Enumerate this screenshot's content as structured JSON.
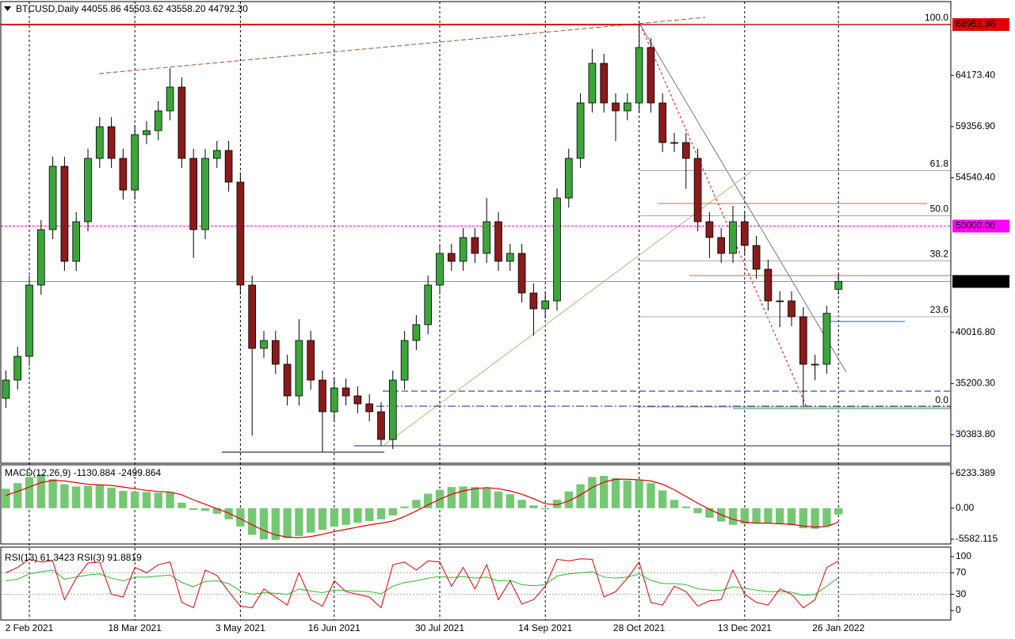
{
  "chart_data": [
    {
      "type": "candlestick",
      "title": "BTCUSD,Daily  44055.86 45503.62 43558.20 44792.30",
      "categories": [
        null,
        null,
        "2 Feb 2021",
        null,
        null,
        null,
        null,
        null,
        null,
        null,
        null,
        "18 Mar 2021",
        null,
        null,
        null,
        null,
        null,
        null,
        null,
        null,
        "3 May 2021",
        null,
        null,
        null,
        null,
        null,
        null,
        null,
        "16 Jun 2021",
        null,
        null,
        null,
        null,
        null,
        null,
        null,
        null,
        "30 Jul 2021",
        null,
        null,
        null,
        null,
        null,
        null,
        null,
        null,
        "14 Sep 2021",
        null,
        null,
        null,
        null,
        null,
        null,
        null,
        "28 Oct 2021",
        null,
        null,
        null,
        null,
        null,
        null,
        null,
        null,
        "13 Dec 2021",
        null,
        null,
        null,
        null,
        null,
        null,
        null,
        "26 Jan 2022"
      ],
      "open": [
        33800,
        35520,
        37753,
        44454,
        49667,
        55623,
        46688,
        50411,
        56368,
        59346,
        56368,
        53390,
        58602,
        58974,
        60836,
        63069,
        56368,
        49667,
        56368,
        57113,
        54134,
        44454,
        38498,
        39242,
        37008,
        34030,
        39242,
        35519,
        32541,
        34775,
        34030,
        33285,
        32541,
        29935,
        35519,
        39242,
        40731,
        44454,
        47433,
        46688,
        48922,
        47433,
        50411,
        46688,
        47433,
        43710,
        42221,
        42965,
        52645,
        56368,
        61580,
        65303,
        61580,
        60836,
        61580,
        66792,
        61580,
        57857,
        57857,
        56368,
        50411,
        48922,
        47433,
        50411,
        48177,
        45944,
        42965,
        42965,
        41476,
        37008,
        37008,
        44055.86
      ],
      "high": [
        36420,
        38650,
        45350,
        50570,
        56520,
        56520,
        51310,
        57270,
        60250,
        60250,
        57270,
        59500,
        59870,
        61740,
        64850,
        63970,
        57270,
        57270,
        58010,
        58010,
        55030,
        45350,
        40140,
        40140,
        37900,
        41240,
        40140,
        36420,
        35670,
        35670,
        34930,
        34180,
        33440,
        36420,
        40140,
        41630,
        45350,
        48330,
        48330,
        49820,
        49820,
        52650,
        51310,
        48330,
        48330,
        44610,
        43860,
        53540,
        57270,
        62480,
        66650,
        66200,
        62480,
        62480,
        68951.98,
        67690,
        62480,
        58760,
        58760,
        57270,
        51310,
        49820,
        51900,
        51310,
        49080,
        46840,
        43860,
        43860,
        42380,
        37900,
        42500,
        45503.62
      ],
      "low": [
        32900,
        34620,
        36850,
        43550,
        48770,
        45790,
        45790,
        49510,
        55470,
        55470,
        52490,
        52490,
        57700,
        58070,
        59940,
        55470,
        47000,
        48770,
        55470,
        53230,
        43550,
        30300,
        37600,
        36110,
        33130,
        33130,
        34620,
        28800,
        31640,
        33130,
        32390,
        31640,
        29300,
        29030,
        34620,
        38340,
        39830,
        43550,
        45790,
        45790,
        46530,
        46530,
        45790,
        45790,
        42810,
        39700,
        41320,
        42060,
        51740,
        55470,
        60680,
        60680,
        58000,
        59940,
        60680,
        60680,
        56960,
        56960,
        53500,
        49510,
        47000,
        46530,
        46530,
        47280,
        45040,
        42060,
        40500,
        40580,
        32950,
        35500,
        36110,
        43558.2
      ],
      "close": [
        35520,
        37753,
        44454,
        49667,
        55623,
        46688,
        50411,
        56368,
        59346,
        56368,
        53390,
        58602,
        58974,
        60836,
        63069,
        56368,
        49667,
        56368,
        57113,
        54134,
        44454,
        38498,
        39242,
        37008,
        34030,
        39242,
        35519,
        32541,
        34775,
        34030,
        33285,
        32541,
        29935,
        35519,
        39242,
        40731,
        44454,
        47433,
        46688,
        48922,
        47433,
        50411,
        46688,
        47433,
        43710,
        42221,
        42965,
        52645,
        56368,
        61580,
        65303,
        61580,
        60836,
        61580,
        66792,
        61580,
        57857,
        57857,
        56368,
        50411,
        48922,
        47433,
        50411,
        48177,
        45944,
        42965,
        42965,
        41476,
        37008,
        37008,
        41800,
        44792.3
      ],
      "up_color": "#3aa63a",
      "down_color": "#8b1a1a",
      "ylim": [
        27701,
        71260
      ],
      "yticks": [
        {
          "value": 30383.8,
          "label": "30383.80"
        },
        {
          "value": 35200.3,
          "label": "35200.30"
        },
        {
          "value": 40016.8,
          "label": "40016.80"
        },
        {
          "value": 54540.4,
          "label": "54540.40"
        },
        {
          "value": 59356.9,
          "label": "59356.90"
        },
        {
          "value": 64173.4,
          "label": "64173.40"
        }
      ],
      "price_labels": [
        {
          "value": 68951.98,
          "label": "68951.98",
          "color": "#e00000",
          "line_style": "solid"
        },
        {
          "value": 50000,
          "label": "50000.00",
          "color": "#ff00ff",
          "line_style": "dashed"
        },
        {
          "value": 44792.3,
          "label": "44792.30",
          "color": "#000000",
          "line_style": "solid"
        }
      ],
      "fibonacci": {
        "high": 68951.98,
        "low": 32990,
        "color": "#aaaaaa",
        "levels": [
          {
            "value": 100,
            "label": "100.0"
          },
          {
            "value": 61.8,
            "label": "61.8"
          },
          {
            "value": 50,
            "label": "50.0"
          },
          {
            "value": 38.2,
            "label": "38.2"
          },
          {
            "value": 23.6,
            "label": "23.6"
          },
          {
            "value": 0,
            "label": "0.0"
          }
        ]
      },
      "grid": true
    },
    {
      "type": "macd",
      "title": "MACD(12,26,9) -1130.884 -2499.864",
      "series": [
        {
          "color": "#74c874",
          "style": "histogram",
          "values": [
            3500,
            4500,
            5600,
            6100,
            5200,
            4300,
            3900,
            4000,
            4200,
            3700,
            3100,
            3000,
            2900,
            2800,
            2900,
            1000,
            -300,
            -500,
            -1000,
            -2000,
            -3300,
            -4800,
            -5600,
            -5700,
            -5400,
            -5000,
            -4400,
            -3900,
            -3300,
            -3000,
            -2600,
            -2300,
            -2000,
            -1300,
            300,
            1500,
            2600,
            3300,
            3800,
            3900,
            3800,
            3700,
            3000,
            2500,
            1500,
            500,
            -200,
            1500,
            3000,
            4300,
            5600,
            5800,
            5400,
            5000,
            5100,
            4500,
            3200,
            1500,
            300,
            -900,
            -1700,
            -2400,
            -3000,
            -2800,
            -2600,
            -2700,
            -2900,
            -3100,
            -3600,
            -3700,
            -3200,
            -1130.884
          ]
        },
        {
          "color": "#e00000",
          "style": "line",
          "values": [
            2300,
            3000,
            3800,
            4600,
            5000,
            4900,
            4600,
            4300,
            4200,
            4100,
            3800,
            3500,
            3200,
            3000,
            2900,
            2400,
            1500,
            700,
            -100,
            -900,
            -1900,
            -3000,
            -4000,
            -4800,
            -5200,
            -5300,
            -5100,
            -4700,
            -4200,
            -3800,
            -3400,
            -3000,
            -2700,
            -2300,
            -1500,
            -500,
            600,
            1600,
            2500,
            3100,
            3500,
            3700,
            3500,
            3100,
            2500,
            1700,
            800,
            600,
            1300,
            2400,
            3700,
            4700,
            5200,
            5200,
            5100,
            4900,
            4300,
            3300,
            2100,
            900,
            -200,
            -1200,
            -2000,
            -2500,
            -2700,
            -2700,
            -2800,
            -2900,
            -3200,
            -3400,
            -3300,
            -2499.864
          ]
        }
      ],
      "ylim": [
        -6294,
        7657
      ],
      "yticks": [
        6233.389,
        {
          "value": 0,
          "label": "0.00"
        },
        -5582.115
      ]
    },
    {
      "type": "rsi",
      "title": "RSI(13) 61.3423  RSI(3) 91.8819",
      "series": [
        {
          "color": "#2eb82e",
          "values": [
            55,
            58,
            68,
            72,
            75,
            58,
            62,
            66,
            68,
            60,
            55,
            62,
            62,
            64,
            66,
            52,
            44,
            54,
            55,
            50,
            36,
            30,
            33,
            32,
            30,
            40,
            36,
            33,
            38,
            37,
            36,
            35,
            31,
            45,
            52,
            55,
            60,
            63,
            61,
            63,
            60,
            62,
            55,
            56,
            48,
            46,
            48,
            64,
            68,
            70,
            72,
            62,
            60,
            62,
            68,
            56,
            50,
            50,
            48,
            40,
            38,
            37,
            44,
            41,
            38,
            35,
            35,
            34,
            28,
            30,
            45,
            61.3423
          ]
        },
        {
          "color": "#e00000",
          "values": [
            70,
            80,
            95,
            90,
            92,
            20,
            60,
            88,
            90,
            30,
            25,
            80,
            70,
            85,
            90,
            15,
            5,
            75,
            65,
            35,
            8,
            5,
            40,
            25,
            10,
            70,
            20,
            8,
            55,
            35,
            30,
            25,
            5,
            85,
            90,
            75,
            92,
            90,
            45,
            80,
            40,
            85,
            20,
            55,
            12,
            20,
            45,
            95,
            92,
            96,
            95,
            25,
            35,
            60,
            90,
            15,
            10,
            45,
            35,
            8,
            18,
            20,
            75,
            30,
            15,
            10,
            40,
            30,
            5,
            20,
            80,
            91.8819
          ]
        }
      ],
      "levels": [
        70,
        30
      ],
      "ylim": [
        -16.2,
        113.2
      ],
      "yticks": [
        100,
        70,
        30,
        0
      ]
    }
  ]
}
